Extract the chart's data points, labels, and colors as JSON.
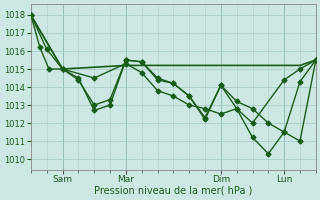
{
  "background_color": "#cde8e3",
  "grid_color": "#a8cfc8",
  "line_color": "#1a5c1a",
  "marker_color": "#1a5c1a",
  "yticks": [
    1010,
    1011,
    1012,
    1013,
    1014,
    1015,
    1016,
    1017,
    1018
  ],
  "ylim": [
    1009.4,
    1018.6
  ],
  "xtick_labels": [
    "Sam",
    "Mar",
    "Dim",
    "Lun"
  ],
  "xtick_positions": [
    14,
    42,
    84,
    112
  ],
  "num_minor_x": 126,
  "xlim": [
    0,
    126
  ],
  "xlabel": "Pression niveau de la mer( hPa )",
  "series": [
    {
      "x": [
        0,
        4,
        8,
        14,
        21,
        28,
        35,
        42,
        49,
        56,
        63,
        70,
        77,
        84,
        91,
        98,
        105,
        112,
        119,
        126
      ],
      "y": [
        1018.0,
        1016.2,
        1015.0,
        1015.0,
        1014.5,
        1012.7,
        1013.0,
        1015.5,
        1015.4,
        1014.5,
        1014.2,
        1013.5,
        1012.2,
        1014.1,
        1013.2,
        1012.8,
        1012.0,
        1011.5,
        1011.0,
        1015.5
      ],
      "marker": "D",
      "markersize": 2.5,
      "linewidth": 1.0
    },
    {
      "x": [
        0,
        14,
        42,
        49,
        56,
        63,
        70,
        77,
        84,
        91,
        98,
        105,
        112,
        119,
        126
      ],
      "y": [
        1018.0,
        1015.0,
        1015.2,
        1015.2,
        1015.2,
        1015.2,
        1015.2,
        1015.2,
        1015.2,
        1015.2,
        1015.2,
        1015.2,
        1015.2,
        1015.2,
        1015.5
      ],
      "marker": null,
      "markersize": 0,
      "linewidth": 1.2
    },
    {
      "x": [
        0,
        7,
        14,
        21,
        28,
        35,
        42,
        49,
        56,
        63,
        70,
        77,
        84,
        91,
        98,
        105,
        112,
        119,
        126
      ],
      "y": [
        1018.0,
        1016.1,
        1015.0,
        1014.4,
        1013.0,
        1013.3,
        1015.5,
        1015.4,
        1014.4,
        1014.2,
        1013.5,
        1012.3,
        1014.1,
        1012.8,
        1011.2,
        1010.3,
        1011.5,
        1014.3,
        1015.5
      ],
      "marker": "D",
      "markersize": 2.5,
      "linewidth": 1.0
    },
    {
      "x": [
        0,
        14,
        28,
        42,
        49,
        56,
        63,
        70,
        77,
        84,
        91,
        98,
        112,
        119,
        126
      ],
      "y": [
        1018.0,
        1015.0,
        1014.5,
        1015.3,
        1014.8,
        1013.8,
        1013.5,
        1013.0,
        1012.8,
        1012.5,
        1012.8,
        1012.0,
        1014.4,
        1015.0,
        1015.5
      ],
      "marker": "D",
      "markersize": 2.5,
      "linewidth": 1.0
    }
  ]
}
